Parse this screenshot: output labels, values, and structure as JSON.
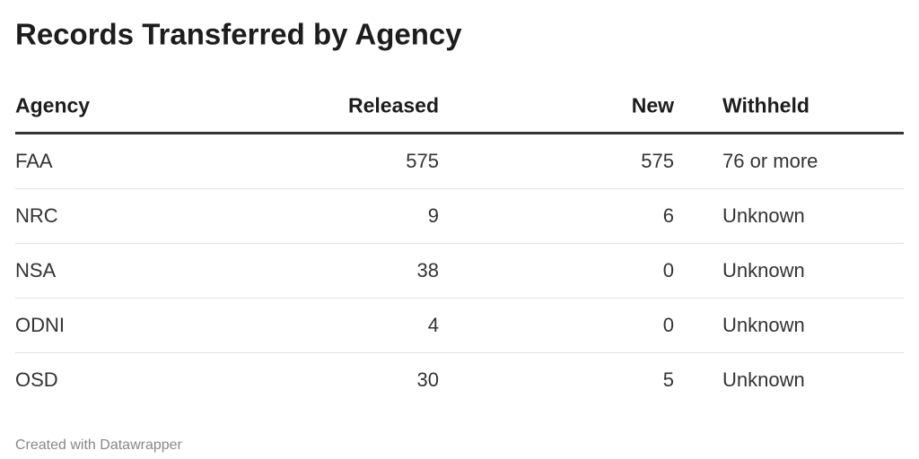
{
  "header": {
    "title": "Records Transferred by Agency"
  },
  "table": {
    "columns": [
      "Agency",
      "Released",
      "New",
      "Withheld"
    ],
    "rows": [
      [
        "FAA",
        575,
        575,
        "76 or more"
      ],
      [
        "NRC",
        9,
        6,
        "Unknown"
      ],
      [
        "NSA",
        38,
        0,
        "Unknown"
      ],
      [
        "ODNI",
        4,
        0,
        "Unknown"
      ],
      [
        "OSD",
        30,
        5,
        "Unknown"
      ]
    ]
  },
  "footer": {
    "credit": "Created with Datawrapper"
  }
}
